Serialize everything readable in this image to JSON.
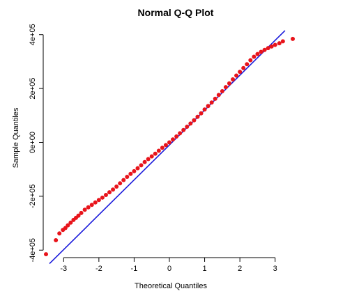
{
  "chart_data": {
    "type": "scatter",
    "title": "Normal Q-Q Plot",
    "xlabel": "Theoretical Quantiles",
    "ylabel": "Sample Quantiles",
    "xlim": [
      -3.5,
      3.5
    ],
    "ylim": [
      -420000,
      420000
    ],
    "x_ticks": [
      -3,
      -2,
      -1,
      0,
      1,
      2,
      3
    ],
    "x_tick_labels": [
      "-3",
      "-2",
      "-1",
      "0",
      "1",
      "2",
      "3"
    ],
    "y_ticks": [
      -400000,
      -200000,
      0,
      200000,
      400000
    ],
    "y_tick_labels": [
      "-4e+05",
      "-2e+05",
      "0e+00",
      "2e+05",
      "4e+05"
    ],
    "grid": false,
    "points_color": "#e8141b",
    "line_color": "#1a1adb",
    "reference_line": {
      "x": [
        -3.4,
        3.28
      ],
      "y": [
        -450000,
        415000
      ]
    },
    "points": {
      "x": [
        -3.5,
        -3.22,
        -3.12,
        -3.02,
        -2.95,
        -2.88,
        -2.8,
        -2.72,
        -2.65,
        -2.58,
        -2.5,
        -2.4,
        -2.3,
        -2.2,
        -2.1,
        -2.0,
        -1.9,
        -1.8,
        -1.7,
        -1.6,
        -1.5,
        -1.4,
        -1.3,
        -1.2,
        -1.1,
        -1.0,
        -0.9,
        -0.8,
        -0.7,
        -0.6,
        -0.5,
        -0.4,
        -0.3,
        -0.2,
        -0.1,
        0.0,
        0.1,
        0.2,
        0.3,
        0.4,
        0.5,
        0.6,
        0.7,
        0.8,
        0.9,
        1.0,
        1.1,
        1.2,
        1.3,
        1.4,
        1.5,
        1.6,
        1.7,
        1.8,
        1.9,
        2.0,
        2.1,
        2.2,
        2.3,
        2.4,
        2.5,
        2.6,
        2.7,
        2.8,
        2.9,
        3.0,
        3.12,
        3.22,
        3.5
      ],
      "y": [
        -415000,
        -363000,
        -338000,
        -325000,
        -318000,
        -308000,
        -298000,
        -288000,
        -280000,
        -272000,
        -262000,
        -250000,
        -241000,
        -232000,
        -223000,
        -214000,
        -205000,
        -195000,
        -185000,
        -175000,
        -164000,
        -152000,
        -140000,
        -128000,
        -117000,
        -107000,
        -96000,
        -85000,
        -73000,
        -62000,
        -52000,
        -42000,
        -31000,
        -20000,
        -10000,
        0,
        11000,
        22000,
        34000,
        46000,
        58000,
        70000,
        82000,
        95000,
        108000,
        122000,
        135000,
        148000,
        162000,
        176000,
        190000,
        205000,
        219000,
        234000,
        248000,
        262000,
        276000,
        290000,
        305000,
        318000,
        328000,
        336000,
        343000,
        350000,
        356000,
        362000,
        368000,
        375000,
        384000
      ]
    }
  }
}
